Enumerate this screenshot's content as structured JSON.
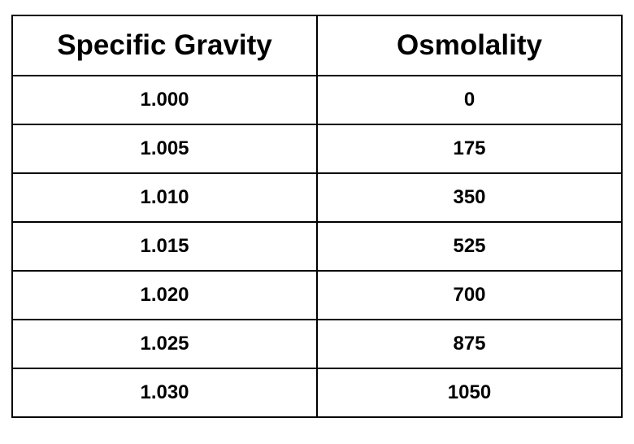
{
  "table": {
    "header": [
      "Specific Gravity",
      "Osmolality"
    ],
    "rows": [
      [
        "1.000",
        "0"
      ],
      [
        "1.005",
        "175"
      ],
      [
        "1.010",
        "350"
      ],
      [
        "1.015",
        "525"
      ],
      [
        "1.020",
        "700"
      ],
      [
        "1.025",
        "875"
      ],
      [
        "1.030",
        "1050"
      ]
    ]
  }
}
